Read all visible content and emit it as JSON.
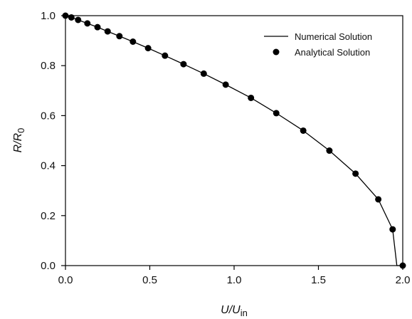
{
  "chart_data": {
    "type": "line",
    "xlabel": "U/U",
    "xlabel_sub": "in",
    "ylabel": "R/R",
    "ylabel_sub": "0",
    "xlim": [
      0.0,
      2.0
    ],
    "ylim": [
      0.0,
      1.0
    ],
    "x_ticks": [
      "0.0",
      "0.5",
      "1.0",
      "1.5",
      "2.0"
    ],
    "y_ticks": [
      "0.0",
      "0.2",
      "0.4",
      "0.6",
      "0.8",
      "1.0"
    ],
    "grid": false,
    "legend_position": "top-right",
    "series": [
      {
        "name": "Numerical Solution",
        "style": "line",
        "color": "#000000",
        "x": [
          0.0,
          0.035,
          0.075,
          0.13,
          0.19,
          0.25,
          0.32,
          0.4,
          0.49,
          0.59,
          0.7,
          0.82,
          0.95,
          1.1,
          1.25,
          1.41,
          1.565,
          1.72,
          1.855,
          1.94,
          1.965,
          2.0
        ],
        "y": [
          1.0,
          0.993,
          0.983,
          0.969,
          0.954,
          0.937,
          0.918,
          0.896,
          0.87,
          0.84,
          0.806,
          0.768,
          0.724,
          0.671,
          0.61,
          0.54,
          0.46,
          0.368,
          0.265,
          0.145,
          0.0,
          0.0
        ]
      },
      {
        "name": "Analytical Solution",
        "style": "markers",
        "color": "#000000",
        "x": [
          0.0,
          0.035,
          0.075,
          0.13,
          0.19,
          0.25,
          0.32,
          0.4,
          0.49,
          0.59,
          0.7,
          0.82,
          0.95,
          1.1,
          1.25,
          1.41,
          1.565,
          1.72,
          1.855,
          1.94,
          2.0
        ],
        "y": [
          1.0,
          0.993,
          0.983,
          0.969,
          0.954,
          0.937,
          0.918,
          0.896,
          0.87,
          0.84,
          0.806,
          0.768,
          0.724,
          0.671,
          0.61,
          0.54,
          0.46,
          0.368,
          0.265,
          0.145,
          0.0
        ]
      }
    ]
  }
}
